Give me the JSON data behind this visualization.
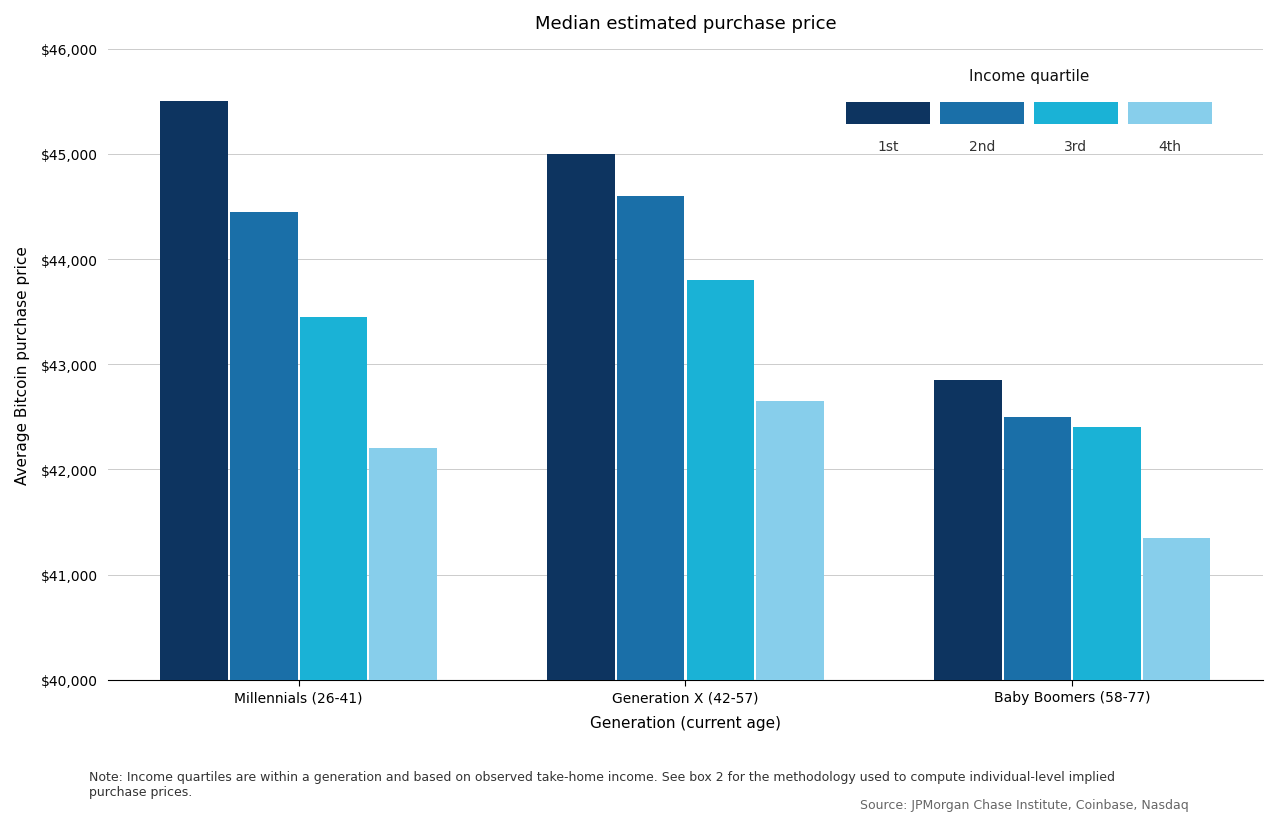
{
  "title": "Median estimated purchase price",
  "xlabel": "Generation (current age)",
  "ylabel": "Average Bitcoin purchase price",
  "categories": [
    "Millennials (26-41)",
    "Generation X (42-57)",
    "Baby Boomers (58-77)"
  ],
  "quartile_labels": [
    "1st",
    "2nd",
    "3rd",
    "4th"
  ],
  "values": [
    [
      45500,
      44450,
      43450,
      42200
    ],
    [
      45000,
      44600,
      43800,
      42650
    ],
    [
      42850,
      42500,
      42400,
      41350
    ]
  ],
  "colors": [
    "#0d3460",
    "#1a6fa8",
    "#1ab2d6",
    "#87ceeb"
  ],
  "ylim": [
    40000,
    46000
  ],
  "yticks": [
    40000,
    41000,
    42000,
    43000,
    44000,
    45000,
    46000
  ],
  "legend_title": "Income quartile",
  "note": "Note: Income quartiles are within a generation and based on observed take-home income. See box 2 for the methodology used to compute individual-level implied\npurchase prices.",
  "source": "Source: JPMorgan Chase Institute, Coinbase, Nasdaq",
  "bar_width": 0.18,
  "background_color": "#ffffff",
  "grid_color": "#cccccc",
  "title_fontsize": 13,
  "axis_label_fontsize": 11,
  "tick_fontsize": 10,
  "legend_fontsize": 10,
  "note_fontsize": 9
}
